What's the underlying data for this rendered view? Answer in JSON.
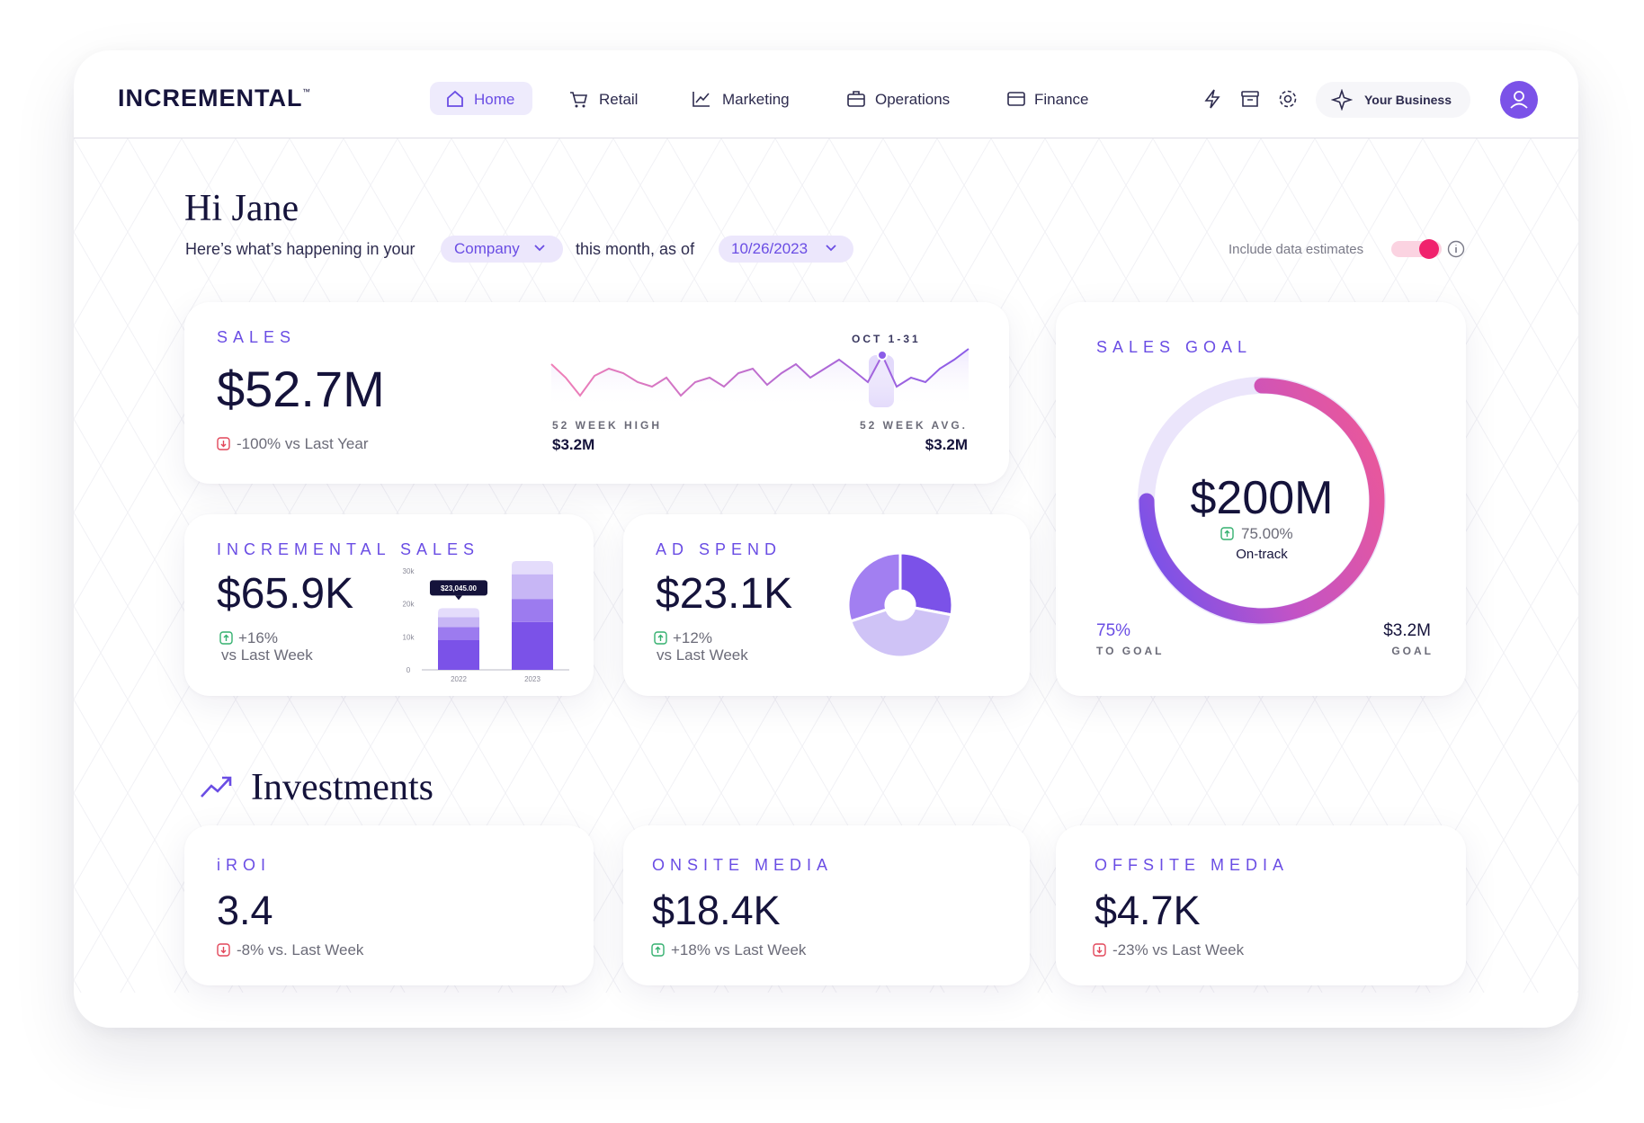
{
  "header": {
    "logo": "INCREMENTAL",
    "logo_mark": "™",
    "nav": [
      "Home",
      "Retail",
      "Marketing",
      "Operations",
      "Finance"
    ],
    "business": "Your Business"
  },
  "greeting": {
    "title": "Hi Jane",
    "prefix": "Here’s what’s happening in your",
    "company": "Company",
    "middle": "this month, as of",
    "date": "10/26/2023",
    "toggle_label": "Include data estimates"
  },
  "sales": {
    "label": "SALES",
    "value": "$52.7M",
    "change": "-100% vs Last Year",
    "trend": "down",
    "period": "OCT 1-31",
    "high_label": "52 WEEK HIGH",
    "high_value": "$3.2M",
    "avg_label": "52 WEEK AVG.",
    "avg_value": "$3.2M"
  },
  "sales_goal": {
    "label": "SALES GOAL",
    "value": "$200M",
    "change": "75.00%",
    "trend": "up",
    "status": "On-track",
    "progress": 75,
    "progress_label": "75%",
    "to_goal": "TO GOAL",
    "goal_value": "$3.2M",
    "goal_label": "GOAL"
  },
  "incremental_sales": {
    "label": "INCREMENTAL SALES",
    "value": "$65.9K",
    "change": "+16%",
    "change_note": "vs Last Week",
    "trend": "up",
    "chart": {
      "type": "bar",
      "stacked": true,
      "categories": [
        "2022",
        "2023"
      ],
      "ylim": [
        0,
        34000
      ],
      "yticks": [
        0,
        {
          "value": 10000,
          "label": "10k"
        },
        {
          "value": 20000,
          "label": "20k"
        },
        {
          "value": 30000,
          "label": "30k"
        }
      ],
      "tooltip": "$23,045.00",
      "series": [
        {
          "color": "#7b52e8",
          "values": [
            9000,
            14500
          ]
        },
        {
          "color": "#9c7bef",
          "values": [
            4000,
            7000
          ]
        },
        {
          "color": "#c7b6f5",
          "values": [
            3000,
            7500
          ]
        },
        {
          "color": "#e4dcfb",
          "values": [
            2700,
            4000
          ]
        }
      ]
    }
  },
  "ad_spend": {
    "label": "AD SPEND",
    "value": "$23.1K",
    "change": "+12%",
    "change_note": "vs Last Week",
    "trend": "up",
    "chart": {
      "type": "pie",
      "values": [
        28,
        42,
        30
      ],
      "colors": [
        "#7b52e8",
        "#cfc3f6",
        "#a27ff1"
      ]
    }
  },
  "investments": {
    "title": "Investments",
    "cards": [
      {
        "label": "iROI",
        "value": "3.4",
        "change": "-8% vs. Last Week",
        "trend": "down"
      },
      {
        "label": "ONSITE MEDIA",
        "value": "$18.4K",
        "change": "+18% vs Last Week",
        "trend": "up"
      },
      {
        "label": "OFFSITE MEDIA",
        "value": "$4.7K",
        "change": "-23% vs Last Week",
        "trend": "down"
      }
    ]
  }
}
